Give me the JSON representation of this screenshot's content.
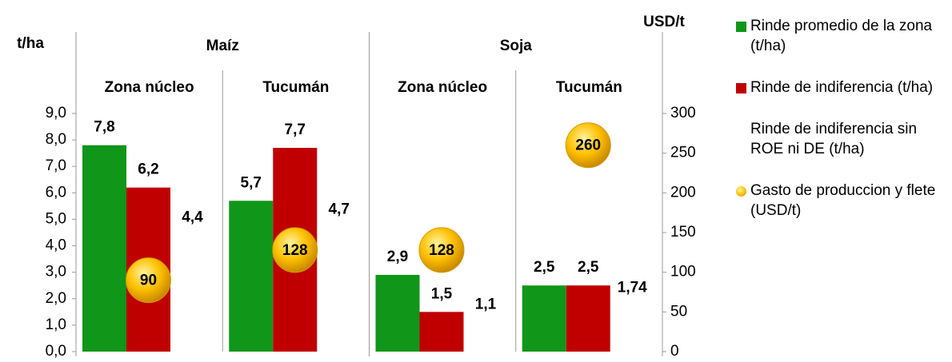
{
  "chart_data": {
    "type": "bar",
    "y_label": "t/ha",
    "y2_label": "USD/t",
    "groups": [
      "Maíz",
      "Soja"
    ],
    "categories": [
      "Zona núcleo",
      "Tucumán",
      "Zona núcleo",
      "Tucumán"
    ],
    "ylim": [
      0,
      9
    ],
    "yticks": [
      {
        "value": 0,
        "label": "0,0"
      },
      {
        "value": 1,
        "label": "1,0"
      },
      {
        "value": 2,
        "label": "2,0"
      },
      {
        "value": 3,
        "label": "3,0"
      },
      {
        "value": 4,
        "label": "4,0"
      },
      {
        "value": 5,
        "label": "5,0"
      },
      {
        "value": 6,
        "label": "6,0"
      },
      {
        "value": 7,
        "label": "7,0"
      },
      {
        "value": 8,
        "label": "8,0"
      },
      {
        "value": 9,
        "label": "9,0"
      }
    ],
    "y2lim": [
      0,
      300
    ],
    "y2ticks": [
      0,
      50,
      100,
      150,
      200,
      250,
      300
    ],
    "legend": "right",
    "series": [
      {
        "name": "Rinde promedio de la zona (t/ha)",
        "color": "#109618",
        "values": [
          7.8,
          5.7,
          2.9,
          2.5
        ],
        "value_labels": [
          "7,8",
          "5,7",
          "2,9",
          "2,5"
        ]
      },
      {
        "name": "Rinde de indiferencia (t/ha)",
        "color": "#c00000",
        "values": [
          6.2,
          7.7,
          1.5,
          2.5
        ],
        "value_labels": [
          "6,2",
          "7,7",
          "1,5",
          "2,5"
        ]
      },
      {
        "name": "Rinde de indiferencia sin ROE ni DE (t/ha)",
        "color": "transparent",
        "values": [
          4.4,
          4.7,
          1.1,
          1.74
        ],
        "value_labels": [
          "4,4",
          "4,7",
          "1,1",
          "1,74"
        ]
      },
      {
        "name": "Gasto de produccion y flete (USD/t)",
        "color": "#ffc000",
        "axis": "y2",
        "values": [
          90,
          128,
          128,
          260
        ]
      }
    ]
  }
}
